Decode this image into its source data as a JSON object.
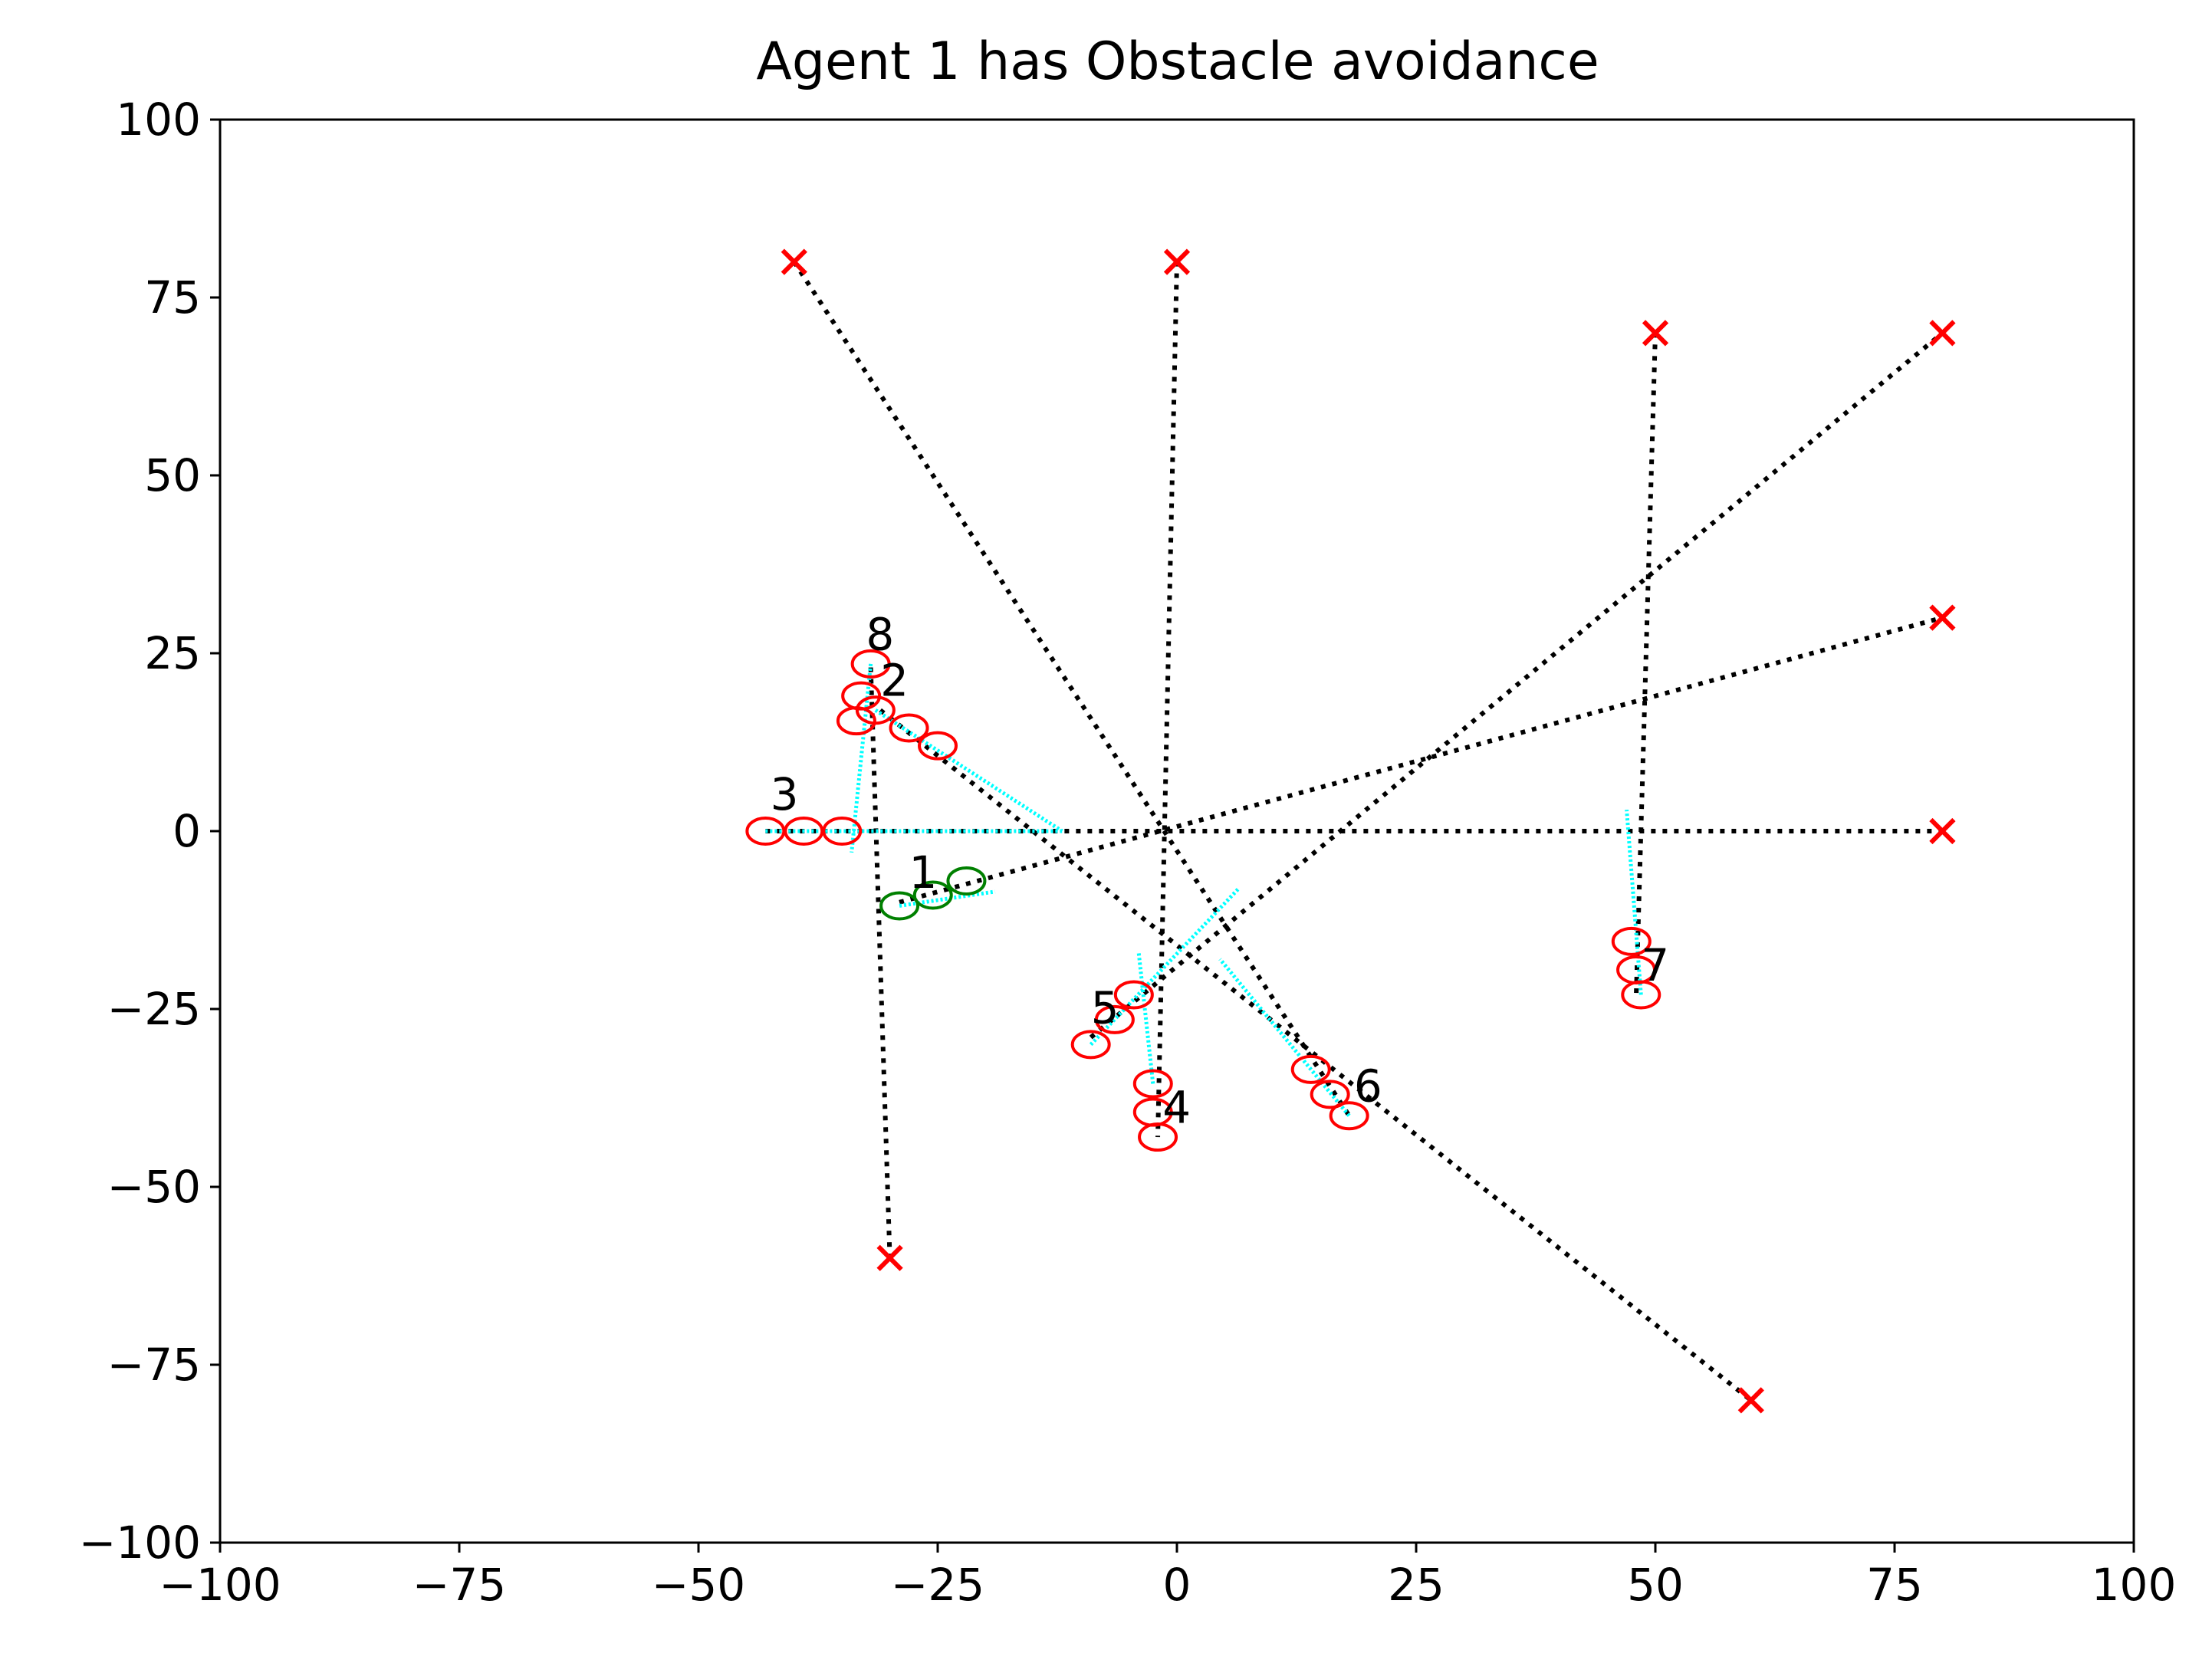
{
  "chart_data": {
    "type": "scatter",
    "title": "Agent 1 has Obstacle avoidance",
    "xlabel": "",
    "ylabel": "",
    "xlim": [
      -100,
      100
    ],
    "ylim": [
      -100,
      100
    ],
    "xticks": [
      -100,
      -75,
      -50,
      -25,
      0,
      25,
      50,
      75,
      100
    ],
    "yticks": [
      -100,
      -75,
      -50,
      -25,
      0,
      25,
      50,
      75,
      100
    ],
    "grid": false,
    "colors": {
      "goal": "#ff0000",
      "agent_marker": "#ff0000",
      "controlled_agent_marker": "#008000",
      "trail": "#00ffff",
      "path": "#000000"
    },
    "goals": [
      {
        "x": -40,
        "y": 80
      },
      {
        "x": 0,
        "y": 80
      },
      {
        "x": 50,
        "y": 70
      },
      {
        "x": 80,
        "y": 70
      },
      {
        "x": 80,
        "y": 30
      },
      {
        "x": 80,
        "y": 0
      },
      {
        "x": -30,
        "y": -60
      },
      {
        "x": 60,
        "y": -80
      }
    ],
    "planned_paths": [
      {
        "from": [
          -43,
          0
        ],
        "to": [
          80,
          0
        ]
      },
      {
        "from": [
          -29,
          -10
        ],
        "to": [
          80,
          30
        ]
      },
      {
        "from": [
          -9,
          -29
        ],
        "to": [
          80,
          70
        ]
      },
      {
        "from": [
          -40,
          80
        ],
        "to": [
          18,
          -40
        ]
      },
      {
        "from": [
          -31,
          17
        ],
        "to": [
          60,
          -80
        ]
      },
      {
        "from": [
          0,
          80
        ],
        "to": [
          -2,
          -43
        ]
      },
      {
        "from": [
          -32,
          23
        ],
        "to": [
          -30,
          -60
        ]
      },
      {
        "from": [
          50,
          70
        ],
        "to": [
          48,
          -23
        ]
      }
    ],
    "agents": [
      {
        "id": "1",
        "controlled": true,
        "positions": [
          [
            -29,
            -10.5
          ],
          [
            -25.5,
            -9
          ],
          [
            -22,
            -7
          ]
        ],
        "trail": [
          [
            -29,
            -10.5
          ],
          [
            -19,
            -8.5
          ]
        ],
        "label_pos": [
          -28,
          -8
        ]
      },
      {
        "id": "2",
        "controlled": false,
        "positions": [
          [
            -31.5,
            17
          ],
          [
            -28,
            14.5
          ],
          [
            -25,
            12
          ]
        ],
        "trail": [
          [
            -31.5,
            17
          ],
          [
            -12,
            0
          ]
        ],
        "label_pos": [
          -31,
          19
        ]
      },
      {
        "id": "3",
        "controlled": false,
        "positions": [
          [
            -43,
            0
          ],
          [
            -39,
            0
          ],
          [
            -35,
            0
          ]
        ],
        "trail": [
          [
            -43,
            0
          ],
          [
            -12,
            0
          ]
        ],
        "label_pos": [
          -42.5,
          3
        ]
      },
      {
        "id": "4",
        "controlled": false,
        "positions": [
          [
            -2.5,
            -35.5
          ],
          [
            -2.5,
            -39.5
          ],
          [
            -2,
            -43
          ]
        ],
        "trail": [
          [
            -2.5,
            -35.5
          ],
          [
            -4,
            -17
          ]
        ],
        "label_pos": [
          -1.5,
          -41
        ]
      },
      {
        "id": "5",
        "controlled": false,
        "positions": [
          [
            -9,
            -30
          ],
          [
            -6.5,
            -26.5
          ],
          [
            -4.5,
            -23
          ]
        ],
        "trail": [
          [
            -9,
            -30
          ],
          [
            6.5,
            -8
          ]
        ],
        "label_pos": [
          -9,
          -27
        ]
      },
      {
        "id": "6",
        "controlled": false,
        "positions": [
          [
            14,
            -33.5
          ],
          [
            16,
            -37
          ],
          [
            18,
            -40
          ]
        ],
        "trail": [
          [
            18,
            -40
          ],
          [
            4.5,
            -18
          ]
        ],
        "label_pos": [
          18.5,
          -38
        ]
      },
      {
        "id": "7",
        "controlled": false,
        "positions": [
          [
            47.5,
            -15.5
          ],
          [
            48,
            -19.5
          ],
          [
            48.5,
            -23
          ]
        ],
        "trail": [
          [
            48.5,
            -23
          ],
          [
            47,
            3
          ]
        ],
        "label_pos": [
          48.5,
          -21
        ]
      },
      {
        "id": "8",
        "controlled": false,
        "positions": [
          [
            -32,
            23.5
          ],
          [
            -33,
            19
          ],
          [
            -33.5,
            15.5
          ]
        ],
        "trail": [
          [
            -32,
            23.5
          ],
          [
            -34,
            -3
          ]
        ],
        "label_pos": [
          -32.5,
          25.5
        ]
      }
    ]
  }
}
